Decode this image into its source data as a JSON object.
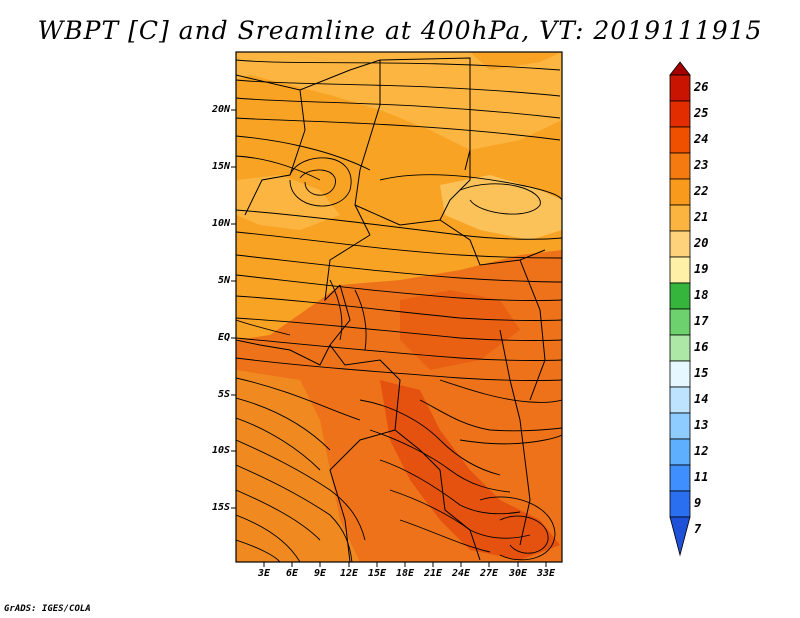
{
  "title": "WBPT [C] and Sreamline at 400hPa, VT: 2019111915",
  "credit": "GrADS: IGES/COLA",
  "lat_labels": [
    "20N",
    "15N",
    "10N",
    "5N",
    "EQ",
    "5S",
    "10S",
    "15S"
  ],
  "lon_labels": [
    "3E",
    "6E",
    "9E",
    "12E",
    "15E",
    "18E",
    "21E",
    "24E",
    "27E",
    "30E",
    "33E"
  ],
  "colorbar": {
    "labels": [
      "26",
      "25",
      "24",
      "23",
      "22",
      "21",
      "20",
      "19",
      "18",
      "17",
      "16",
      "15",
      "14",
      "13",
      "12",
      "11",
      "9",
      "7"
    ],
    "colors": [
      "#a50000",
      "#c81400",
      "#e12d00",
      "#ee5000",
      "#f57a0f",
      "#f99a1c",
      "#fbb43f",
      "#fdd27a",
      "#fff0a8",
      "#36b53c",
      "#6dd26d",
      "#aee8a6",
      "#e6f7ff",
      "#bde3ff",
      "#8ecbff",
      "#5fafff",
      "#3f8fff",
      "#2a6ff0",
      "#1f50d8"
    ]
  },
  "map": {
    "field": "WBPT",
    "units": "C",
    "level": "400hPa",
    "valid_time": "2019111915",
    "lon_range": [
      0.5,
      35
    ],
    "lat_range": [
      -19.5,
      24.5
    ],
    "dominant_colors": {
      "north_band": "#f9a325",
      "central": "#ee7219",
      "southern_core": "#e5520f",
      "pale_patch": "#fbc25a"
    }
  }
}
